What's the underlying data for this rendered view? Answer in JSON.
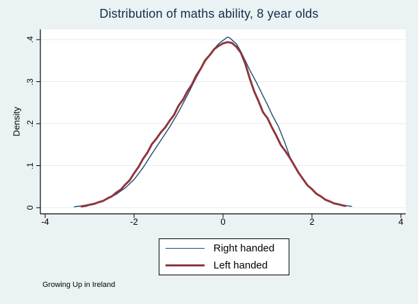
{
  "figure": {
    "background": "#eaf2f3",
    "title_color": "#132d4d",
    "caption": "Growing Up in Ireland"
  },
  "chart_data": {
    "type": "line",
    "subtype": "kernel-density",
    "title": "Distribution of maths ability, 8 year olds",
    "xlabel": "",
    "ylabel": "Density",
    "xlim": [
      -4,
      4
    ],
    "ylim": [
      0,
      0.4
    ],
    "x_ticks": [
      -4,
      -2,
      0,
      2,
      4
    ],
    "x_tick_labels": [
      "-4",
      "-2",
      "0",
      "2",
      "4"
    ],
    "y_ticks": [
      0,
      0.1,
      0.2,
      0.3,
      0.4
    ],
    "y_tick_labels": [
      "0",
      ".1",
      ".2",
      ".3",
      ".4"
    ],
    "grid": true,
    "grid_color": "#e2edef",
    "axis_color": "#000000",
    "legend_position": "bottom-center",
    "series": [
      {
        "name": "Right handed",
        "color": "#1a476f",
        "width": 1.4,
        "points": [
          [
            -3.35,
            0.002
          ],
          [
            -3.2,
            0.004
          ],
          [
            -3.0,
            0.008
          ],
          [
            -2.8,
            0.013
          ],
          [
            -2.6,
            0.021
          ],
          [
            -2.4,
            0.032
          ],
          [
            -2.2,
            0.047
          ],
          [
            -2.0,
            0.067
          ],
          [
            -1.8,
            0.095
          ],
          [
            -1.6,
            0.128
          ],
          [
            -1.4,
            0.16
          ],
          [
            -1.2,
            0.192
          ],
          [
            -1.0,
            0.228
          ],
          [
            -0.8,
            0.268
          ],
          [
            -0.6,
            0.31
          ],
          [
            -0.4,
            0.348
          ],
          [
            -0.2,
            0.378
          ],
          [
            -0.1,
            0.39
          ],
          [
            0.0,
            0.398
          ],
          [
            0.1,
            0.406
          ],
          [
            0.15,
            0.404
          ],
          [
            0.3,
            0.39
          ],
          [
            0.4,
            0.372
          ],
          [
            0.5,
            0.35
          ],
          [
            0.6,
            0.328
          ],
          [
            0.75,
            0.298
          ],
          [
            0.9,
            0.266
          ],
          [
            1.0,
            0.245
          ],
          [
            1.1,
            0.222
          ],
          [
            1.25,
            0.192
          ],
          [
            1.4,
            0.152
          ],
          [
            1.5,
            0.122
          ],
          [
            1.6,
            0.1
          ],
          [
            1.8,
            0.066
          ],
          [
            2.0,
            0.043
          ],
          [
            2.2,
            0.026
          ],
          [
            2.4,
            0.014
          ],
          [
            2.6,
            0.008
          ],
          [
            2.75,
            0.005
          ],
          [
            2.9,
            0.003
          ]
        ]
      },
      {
        "name": "Left handed",
        "color": "#90353b",
        "width": 3,
        "points": [
          [
            -3.2,
            0.003
          ],
          [
            -3.1,
            0.004
          ],
          [
            -3.0,
            0.007
          ],
          [
            -2.9,
            0.009
          ],
          [
            -2.8,
            0.013
          ],
          [
            -2.7,
            0.016
          ],
          [
            -2.6,
            0.022
          ],
          [
            -2.5,
            0.027
          ],
          [
            -2.4,
            0.036
          ],
          [
            -2.3,
            0.043
          ],
          [
            -2.2,
            0.055
          ],
          [
            -2.1,
            0.065
          ],
          [
            -2.0,
            0.082
          ],
          [
            -1.9,
            0.097
          ],
          [
            -1.8,
            0.116
          ],
          [
            -1.7,
            0.131
          ],
          [
            -1.6,
            0.151
          ],
          [
            -1.5,
            0.164
          ],
          [
            -1.4,
            0.179
          ],
          [
            -1.3,
            0.191
          ],
          [
            -1.2,
            0.207
          ],
          [
            -1.1,
            0.221
          ],
          [
            -1.0,
            0.243
          ],
          [
            -0.9,
            0.257
          ],
          [
            -0.8,
            0.277
          ],
          [
            -0.7,
            0.293
          ],
          [
            -0.6,
            0.315
          ],
          [
            -0.5,
            0.331
          ],
          [
            -0.4,
            0.351
          ],
          [
            -0.3,
            0.363
          ],
          [
            -0.2,
            0.377
          ],
          [
            -0.1,
            0.385
          ],
          [
            0.0,
            0.391
          ],
          [
            0.1,
            0.394
          ],
          [
            0.2,
            0.392
          ],
          [
            0.3,
            0.383
          ],
          [
            0.4,
            0.369
          ],
          [
            0.5,
            0.343
          ],
          [
            0.6,
            0.308
          ],
          [
            0.7,
            0.277
          ],
          [
            0.8,
            0.253
          ],
          [
            0.9,
            0.227
          ],
          [
            1.0,
            0.213
          ],
          [
            1.1,
            0.191
          ],
          [
            1.2,
            0.171
          ],
          [
            1.3,
            0.149
          ],
          [
            1.4,
            0.135
          ],
          [
            1.5,
            0.119
          ],
          [
            1.6,
            0.101
          ],
          [
            1.7,
            0.083
          ],
          [
            1.8,
            0.068
          ],
          [
            1.9,
            0.053
          ],
          [
            2.0,
            0.044
          ],
          [
            2.1,
            0.033
          ],
          [
            2.2,
            0.027
          ],
          [
            2.3,
            0.019
          ],
          [
            2.4,
            0.015
          ],
          [
            2.5,
            0.01
          ],
          [
            2.6,
            0.008
          ],
          [
            2.7,
            0.005
          ],
          [
            2.77,
            0.004
          ]
        ]
      }
    ]
  }
}
